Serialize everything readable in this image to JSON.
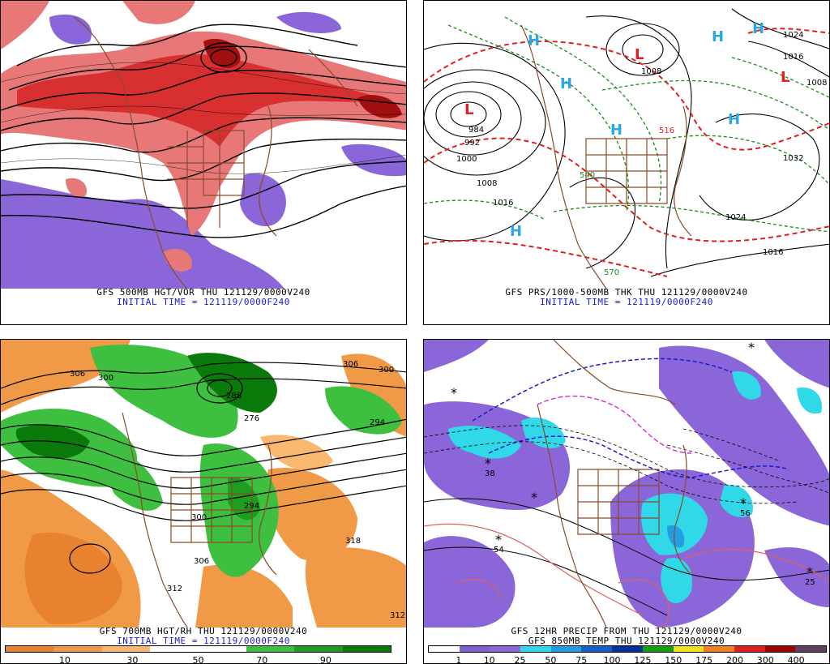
{
  "panels": {
    "p500": {
      "caption_line1": "GFS 500MB HGT/VOR THU 121129/0000V240",
      "caption_line2": "INITIAL TIME = 121119/0000F240"
    },
    "pprs": {
      "caption_line1": "GFS PRS/1000-500MB THK THU 121129/0000V240",
      "caption_line2": "INITIAL TIME = 121119/0000F240",
      "highs": [
        "H",
        "H",
        "H",
        "H",
        "H",
        "H",
        "H"
      ],
      "lows": [
        "L",
        "L",
        "L"
      ],
      "isobar_labels": [
        "1024",
        "1016",
        "1008",
        "1000",
        "992",
        "984",
        "1008",
        "1016",
        "1024",
        "1016",
        "1032",
        "1008"
      ],
      "thickness_labels": [
        "516",
        "540",
        "570"
      ]
    },
    "p700": {
      "caption_line1": "GFS 700MB HGT/RH THU 121129/0000V240",
      "caption_line2": "INITIAL TIME = 121119/0000F240",
      "height_labels": [
        "306",
        "300",
        "306",
        "300",
        "318",
        "300",
        "312",
        "306",
        "294",
        "288",
        "294",
        "276",
        "312"
      ],
      "colorbar_ticks": [
        "10",
        "30",
        "50",
        "70",
        "90"
      ],
      "colorbar_colors": [
        "#e8822f",
        "#f09a48",
        "#f8b870",
        "#ffffff",
        "#ffffff",
        "#3fbf3f",
        "#1e9e1e",
        "#0a7a0a"
      ]
    },
    "pprecip": {
      "caption_line1": "GFS 12HR PRECIP FROM THU 121129/0000V240",
      "caption_line2": "GFS 850MB TEMP THU 121129/0000V240",
      "point_labels": [
        "38",
        "54",
        "56",
        "25"
      ],
      "colorbar_ticks": [
        "1",
        "10",
        "25",
        "50",
        "75",
        "100",
        "125",
        "150",
        "175",
        "200",
        "300",
        "400"
      ],
      "colorbar_colors": [
        "#ffffff",
        "#8060d0",
        "#8a66d8",
        "#30d8e8",
        "#20a0e0",
        "#1060d0",
        "#0030a0",
        "#10a010",
        "#f0e020",
        "#f08020",
        "#e02020",
        "#a00000",
        "#604060"
      ]
    }
  }
}
